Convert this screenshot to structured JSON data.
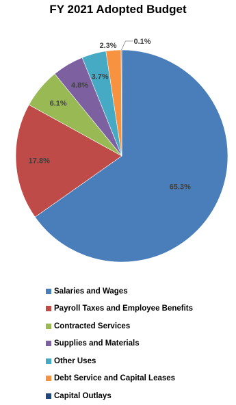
{
  "chart_data": {
    "type": "pie",
    "title": "FY 2021 Adopted Budget",
    "legend_position": "bottom",
    "slices": [
      {
        "label": "Salaries and Wages",
        "value": 65.3,
        "value_label": "65.3%",
        "color": "#4a7ebb"
      },
      {
        "label": "Payroll Taxes and Employee Benefits",
        "value": 17.8,
        "value_label": "17.8%",
        "color": "#be4b48"
      },
      {
        "label": "Contracted Services",
        "value": 6.1,
        "value_label": "6.1%",
        "color": "#98b954"
      },
      {
        "label": "Supplies and Materials",
        "value": 4.8,
        "value_label": "4.8%",
        "color": "#7d60a0"
      },
      {
        "label": "Other Uses",
        "value": 3.7,
        "value_label": "3.7%",
        "color": "#46aac5"
      },
      {
        "label": "Debt Service and Capital Leases",
        "value": 2.3,
        "value_label": "2.3%",
        "color": "#f69240"
      },
      {
        "label": "Capital Outlays",
        "value": 0.1,
        "value_label": "0.1%",
        "color": "#1f497d"
      }
    ]
  }
}
